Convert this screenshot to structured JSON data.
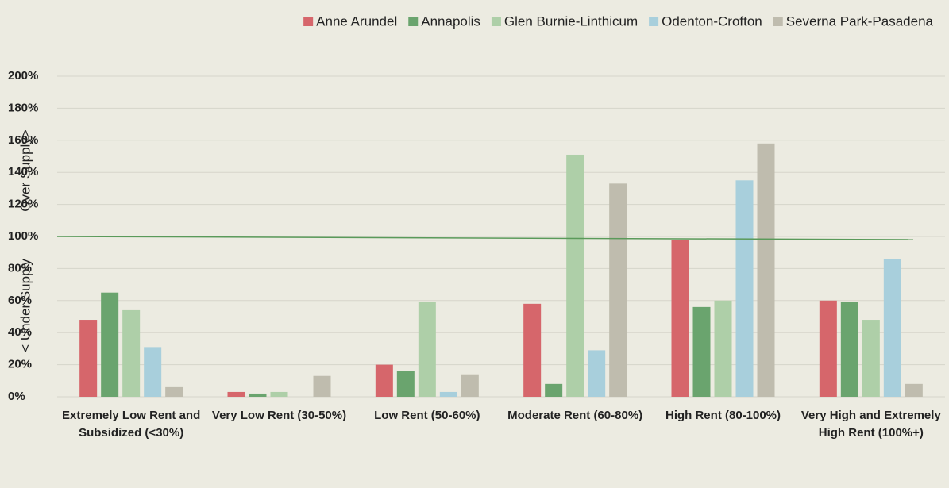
{
  "chart_data": {
    "type": "bar",
    "categories": [
      "Extremely Low Rent and Subsidized (<30%)",
      "Very Low Rent (30-50%)",
      "Low Rent (50-60%)",
      "Moderate Rent (60-80%)",
      "High Rent (80-100%)",
      "Very High and Extremely High Rent (100%+)"
    ],
    "series": [
      {
        "name": "Anne Arundel",
        "color": "#d6666b",
        "values": [
          48,
          3,
          20,
          58,
          98,
          60
        ]
      },
      {
        "name": "Annapolis",
        "color": "#6aa46e",
        "values": [
          65,
          2,
          16,
          8,
          56,
          59
        ]
      },
      {
        "name": "Glen Burnie-Linthicum",
        "color": "#aecfa8",
        "values": [
          54,
          3,
          59,
          151,
          60,
          48
        ]
      },
      {
        "name": "Odenton-Crofton",
        "color": "#a8cfdc",
        "values": [
          31,
          0,
          3,
          29,
          135,
          86
        ]
      },
      {
        "name": "Severna Park-Pasadena",
        "color": "#bfbcae",
        "values": [
          6,
          13,
          14,
          133,
          158,
          8
        ]
      }
    ],
    "ylim": [
      0,
      200
    ],
    "yticks": [
      {
        "value": 0,
        "label": "0%"
      },
      {
        "value": 20,
        "label": "20%"
      },
      {
        "value": 40,
        "label": "40%"
      },
      {
        "value": 60,
        "label": "60%"
      },
      {
        "value": 80,
        "label": "80%"
      },
      {
        "value": 100,
        "label": "100%"
      },
      {
        "value": 120,
        "label": "120%"
      },
      {
        "value": 140,
        "label": "140%"
      },
      {
        "value": 160,
        "label": "160%"
      },
      {
        "value": 180,
        "label": "180%"
      },
      {
        "value": 200,
        "label": "200%"
      }
    ],
    "grid": true,
    "reference_line": {
      "values": [
        100,
        98
      ],
      "color": "#5a9a5a"
    },
    "annotations": [
      "< Under Supply",
      "Over Supply>"
    ],
    "legend_position": "top-right"
  }
}
